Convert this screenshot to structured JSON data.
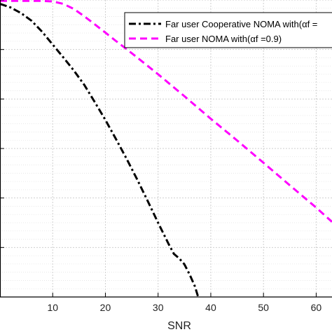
{
  "chart_data": {
    "type": "line",
    "title": "",
    "xlabel": "SNR",
    "ylabel": "",
    "x_ticks": [
      10,
      20,
      30,
      40,
      50,
      60
    ],
    "xlim": [
      0,
      63
    ],
    "ylim": [
      0,
      1
    ],
    "grid": true,
    "legend_position": "top-right",
    "series": [
      {
        "name": "Far user Cooperative NOMA with(αf =",
        "color": "#000000",
        "style": "dash-dot",
        "x": [
          0,
          2,
          4,
          6,
          8,
          10,
          12,
          14,
          16,
          18,
          20,
          22,
          24,
          26,
          28,
          30,
          32,
          33,
          34,
          35,
          36,
          37,
          37.6
        ],
        "y": [
          0.987,
          0.975,
          0.956,
          0.93,
          0.893,
          0.85,
          0.807,
          0.763,
          0.714,
          0.656,
          0.596,
          0.532,
          0.466,
          0.397,
          0.324,
          0.25,
          0.178,
          0.145,
          0.13,
          0.11,
          0.075,
          0.035,
          0.0
        ]
      },
      {
        "name": "Far user  NOMA with(αf =0.9)",
        "color": "#ff00ff",
        "style": "dashed",
        "x": [
          0,
          5,
          8,
          10,
          12,
          14,
          16,
          18,
          20,
          22,
          25,
          30,
          35,
          40,
          45,
          50,
          55,
          60,
          63
        ],
        "y": [
          0.997,
          0.997,
          0.997,
          0.995,
          0.987,
          0.97,
          0.945,
          0.918,
          0.89,
          0.862,
          0.821,
          0.75,
          0.676,
          0.6,
          0.527,
          0.452,
          0.376,
          0.301,
          0.253
        ]
      }
    ]
  }
}
